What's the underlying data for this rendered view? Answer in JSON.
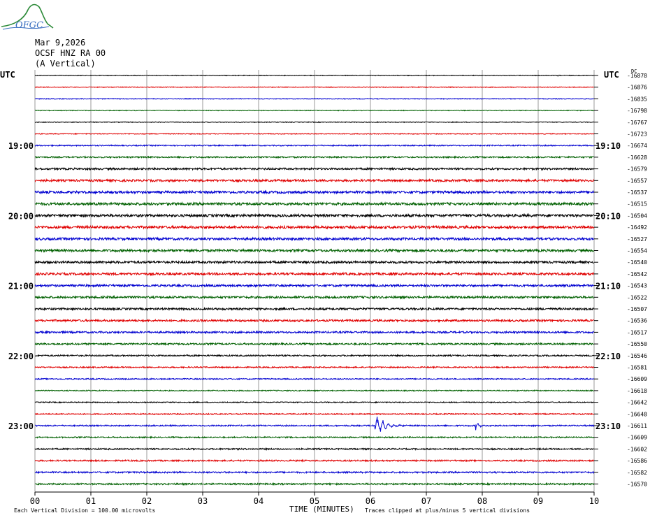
{
  "header": {
    "logo_text": "OFGC",
    "date": "Mar 9,2026",
    "station": "OCSF HNZ RA 00",
    "component": "(A Vertical)"
  },
  "chart_data": {
    "type": "line",
    "title": "Mar 9,2026",
    "left_timezone": "UTC",
    "right_timezone": "UTC",
    "dc_label": "DC",
    "xlabel": "TIME (MINUTES)",
    "x_ticks": [
      "00",
      "01",
      "02",
      "03",
      "04",
      "05",
      "06",
      "07",
      "08",
      "09",
      "10"
    ],
    "xlim": [
      0,
      10
    ],
    "minutes_per_trace": 10,
    "traces_per_hour": 6,
    "left_hour_labels": [
      {
        "trace": 6,
        "text": "19:00"
      },
      {
        "trace": 12,
        "text": "20:00"
      },
      {
        "trace": 18,
        "text": "21:00"
      },
      {
        "trace": 24,
        "text": "22:00"
      },
      {
        "trace": 30,
        "text": "23:00"
      }
    ],
    "right_hour_labels": [
      {
        "trace": 6,
        "text": "19:10"
      },
      {
        "trace": 12,
        "text": "20:10"
      },
      {
        "trace": 18,
        "text": "21:10"
      },
      {
        "trace": 24,
        "text": "22:10"
      },
      {
        "trace": 30,
        "text": "23:10"
      }
    ],
    "trace_colors": [
      "#000000",
      "#e00000",
      "#0000d0",
      "#006000"
    ],
    "dc_offsets": [
      "-16878",
      "-16876",
      "-16835",
      "-16798",
      "-16767",
      "-16723",
      "-16674",
      "-16628",
      "-16579",
      "-16557",
      "-16537",
      "-16515",
      "-16504",
      "-16492",
      "-16527",
      "-16554",
      "-16540",
      "-16542",
      "-16543",
      "-16522",
      "-16507",
      "-16536",
      "-16517",
      "-16550",
      "-16546",
      "-16581",
      "-16609",
      "-16618",
      "-16642",
      "-16648",
      "-16611",
      "-16609",
      "-16602",
      "-16586",
      "-16582",
      "-16570"
    ],
    "noise_amplitude": [
      0.5,
      0.5,
      0.5,
      0.5,
      0.5,
      0.6,
      0.8,
      1.0,
      1.3,
      1.5,
      1.7,
      1.8,
      1.8,
      1.8,
      1.7,
      1.7,
      1.6,
      1.6,
      1.5,
      1.5,
      1.4,
      1.4,
      1.3,
      1.2,
      1.0,
      0.9,
      0.8,
      0.7,
      0.7,
      0.8,
      0.9,
      0.9,
      1.0,
      1.0,
      1.1,
      1.1
    ],
    "events": [
      {
        "trace": 0,
        "minute": 9.35,
        "amplitude": 2.5,
        "duration_min": 0.05
      },
      {
        "trace": 3,
        "minute": 5.55,
        "amplitude": 1.8,
        "duration_min": 0.04
      },
      {
        "trace": 30,
        "minute": 6.08,
        "amplitude": 14.0,
        "duration_min": 0.6
      },
      {
        "trace": 30,
        "minute": 7.88,
        "amplitude": 6.0,
        "duration_min": 0.2
      }
    ],
    "footer_left": "Each Vertical Division =  100.00 microvolts",
    "footer_right": "Traces clipped at plus/minus 5 vertical divisions"
  }
}
